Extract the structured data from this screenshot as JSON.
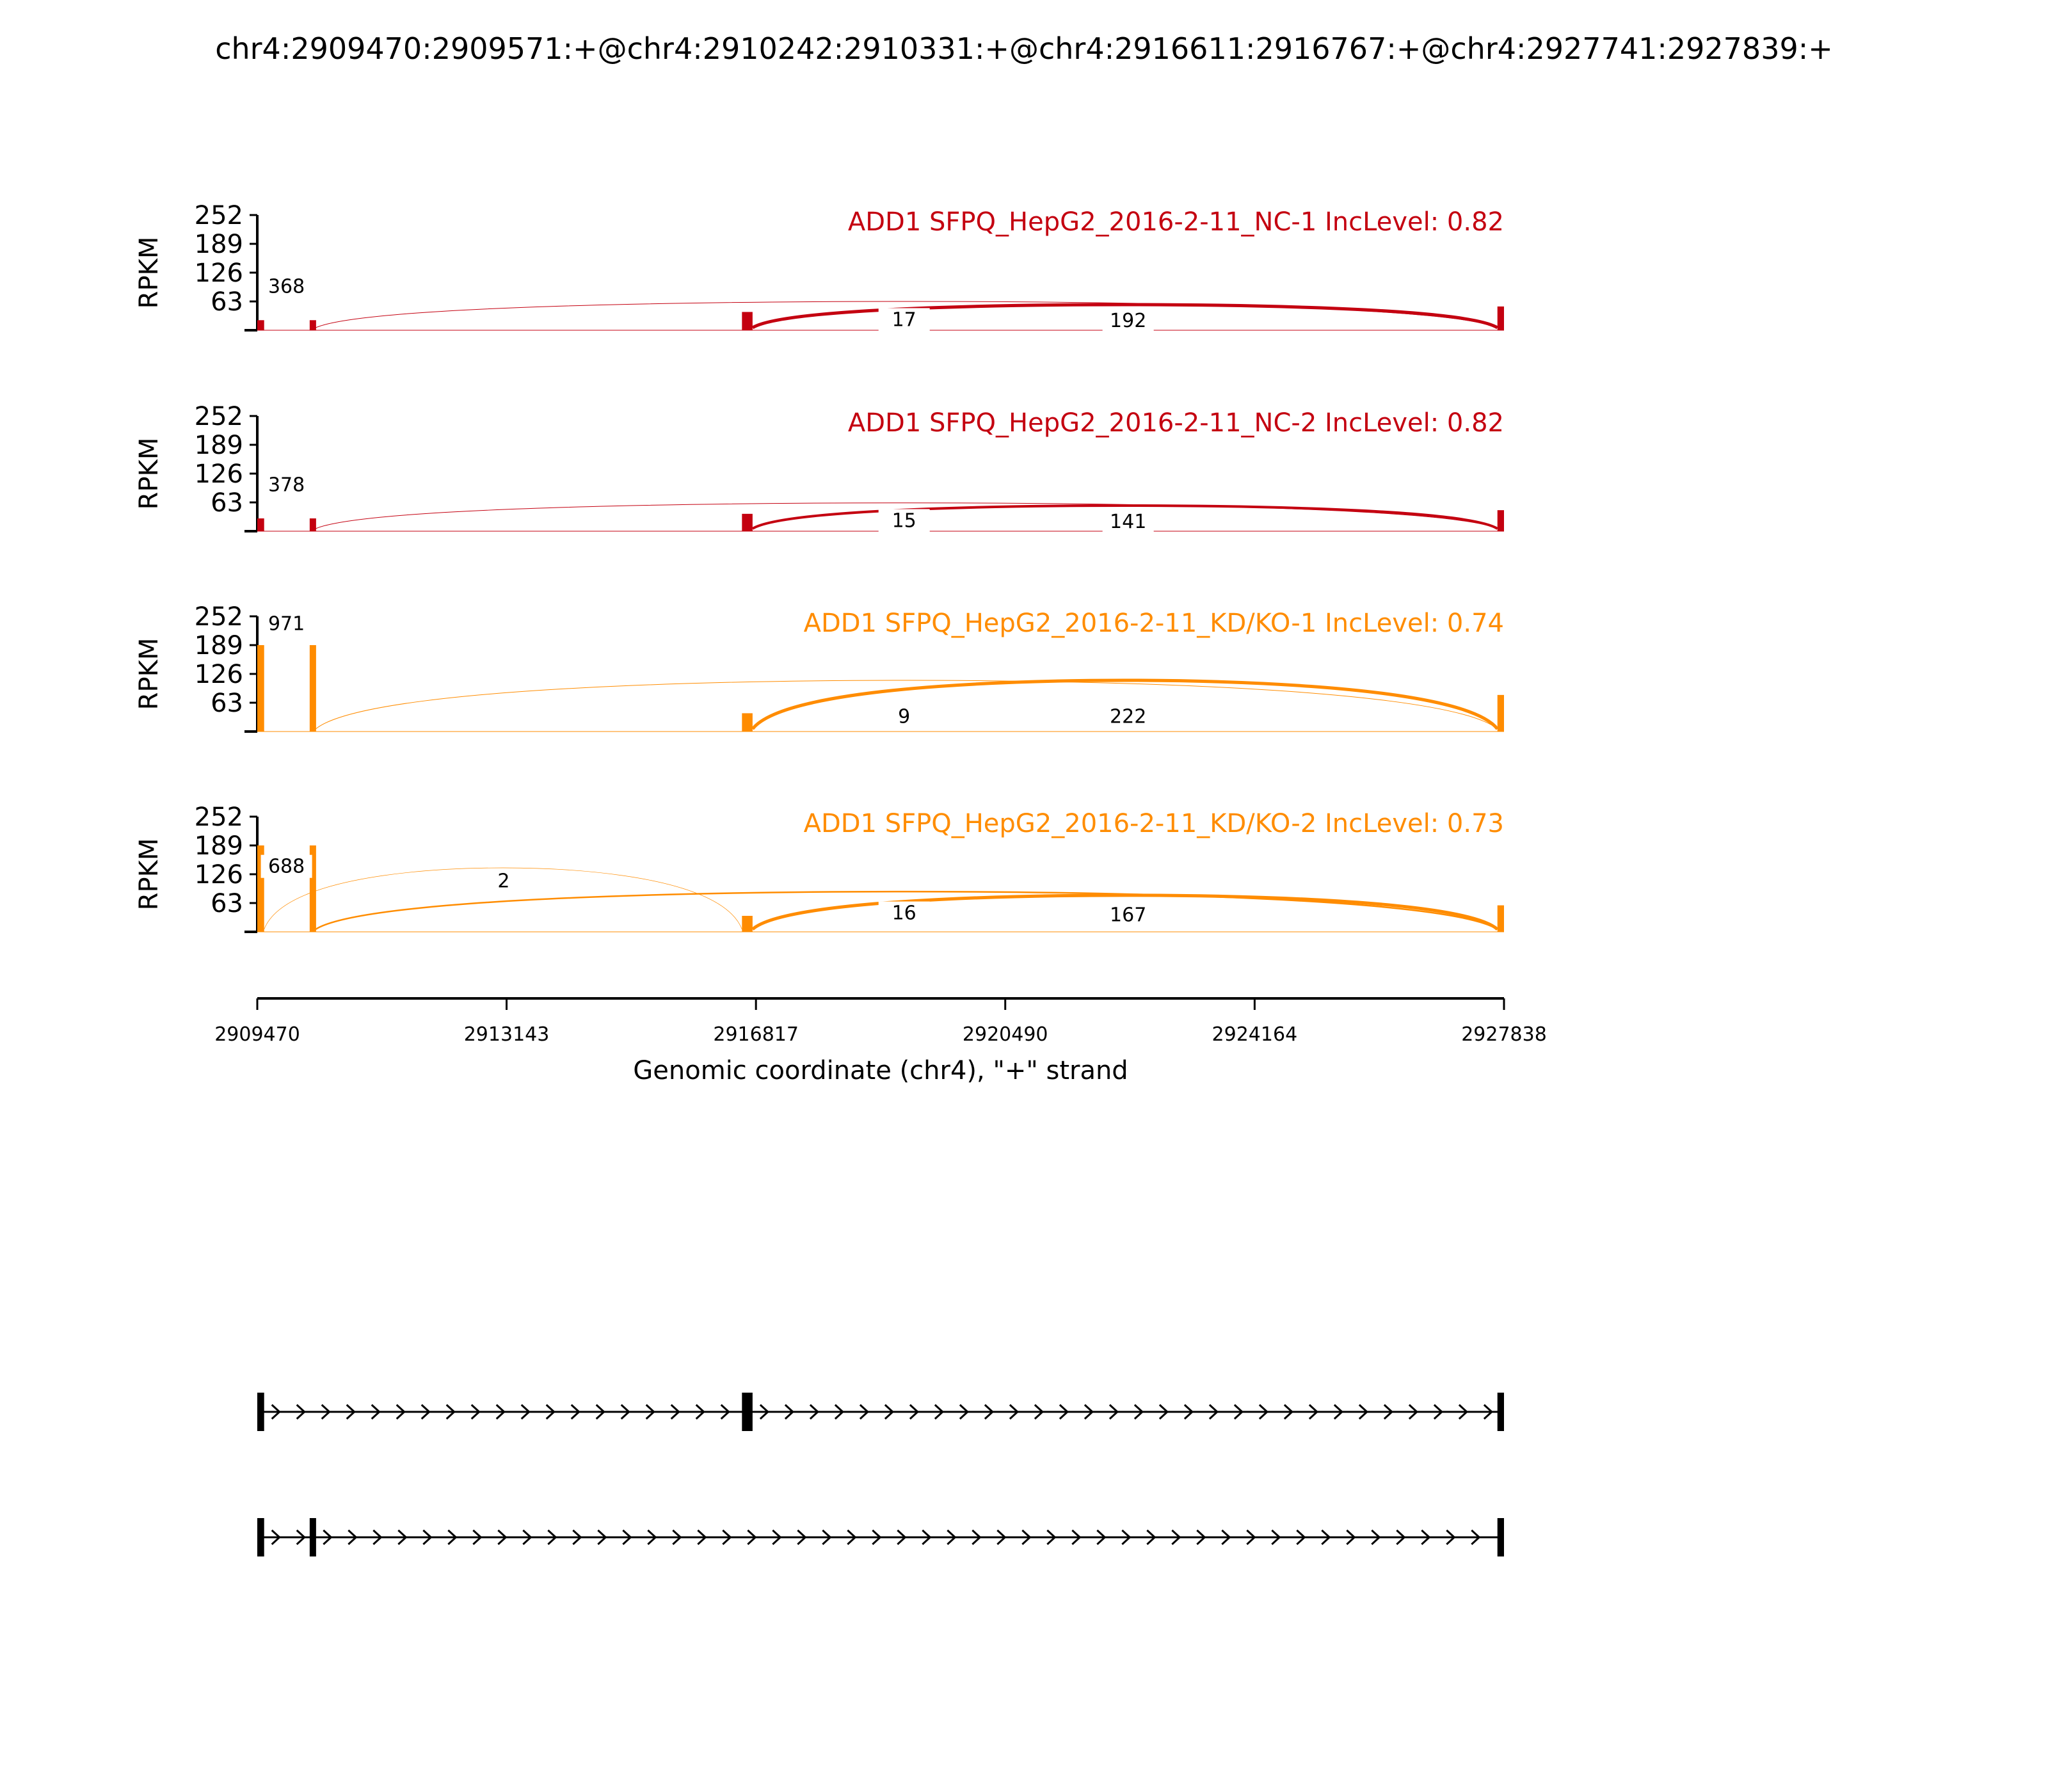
{
  "chart_data": {
    "type": "area",
    "title": "chr4:2909470:2909571:+@chr4:2910242:2910331:+@chr4:2916611:2916767:+@chr4:2927741:2927839:+",
    "xlabel": "Genomic coordinate (chr4), \"+\" strand",
    "ylabel": "RPKM",
    "xlim": [
      2909470,
      2927838
    ],
    "ylim": [
      0,
      252
    ],
    "x_ticks": [
      2909470,
      2913143,
      2916817,
      2920490,
      2924164,
      2927838
    ],
    "y_ticks": [
      63,
      126,
      189,
      252
    ],
    "colors": {
      "nc": "#c40010",
      "kd": "#ff8c00"
    },
    "series": [
      {
        "name": "ADD1 SFPQ_HepG2_2016-2-11_NC-1 IncLevel: 0.82",
        "color": "#c40010",
        "junction_labels": [
          "368",
          "17",
          "192"
        ],
        "coverage": [
          {
            "x0": 2909470,
            "x1": 2909571,
            "y": 22
          },
          {
            "x0": 2910242,
            "x1": 2910331,
            "y": 22
          },
          {
            "x0": 2916611,
            "x1": 2916767,
            "y": 40
          },
          {
            "x0": 2927741,
            "x1": 2927838,
            "y": 52
          }
        ],
        "junctions": [
          {
            "from": 2910331,
            "to": 2927741,
            "height": 63,
            "width": 1
          },
          {
            "from": 2916767,
            "to": 2927741,
            "height": 56,
            "width": 5
          }
        ]
      },
      {
        "name": "ADD1 SFPQ_HepG2_2016-2-11_NC-2 IncLevel: 0.82",
        "color": "#c40010",
        "junction_labels": [
          "378",
          "15",
          "141"
        ],
        "coverage": [
          {
            "x0": 2909470,
            "x1": 2909571,
            "y": 28
          },
          {
            "x0": 2910242,
            "x1": 2910331,
            "y": 28
          },
          {
            "x0": 2916611,
            "x1": 2916767,
            "y": 38
          },
          {
            "x0": 2927741,
            "x1": 2927838,
            "y": 46
          }
        ],
        "junctions": [
          {
            "from": 2910331,
            "to": 2927741,
            "height": 62,
            "width": 1
          },
          {
            "from": 2916767,
            "to": 2927741,
            "height": 56,
            "width": 4
          }
        ]
      },
      {
        "name": "ADD1 SFPQ_HepG2_2016-2-11_KD/KO-1 IncLevel: 0.74",
        "color": "#ff8c00",
        "junction_labels": [
          "971",
          "9",
          "222"
        ],
        "coverage": [
          {
            "x0": 2909470,
            "x1": 2909571,
            "y": 189
          },
          {
            "x0": 2910242,
            "x1": 2910331,
            "y": 189
          },
          {
            "x0": 2916611,
            "x1": 2916767,
            "y": 40
          },
          {
            "x0": 2927741,
            "x1": 2927838,
            "y": 80
          }
        ],
        "junctions": [
          {
            "from": 2910331,
            "to": 2927741,
            "height": 112,
            "width": 1
          },
          {
            "from": 2916767,
            "to": 2927741,
            "height": 112,
            "width": 5
          }
        ]
      },
      {
        "name": "ADD1 SFPQ_HepG2_2016-2-11_KD/KO-2 IncLevel: 0.73",
        "color": "#ff8c00",
        "junction_labels": [
          "688",
          "2",
          "16",
          "167"
        ],
        "coverage": [
          {
            "x0": 2909470,
            "x1": 2909571,
            "y": 189
          },
          {
            "x0": 2910242,
            "x1": 2910331,
            "y": 189
          },
          {
            "x0": 2916611,
            "x1": 2916767,
            "y": 35
          },
          {
            "x0": 2927741,
            "x1": 2927838,
            "y": 58
          }
        ],
        "junctions": [
          {
            "from": 2909571,
            "to": 2916611,
            "height": 140,
            "width": 0.7
          },
          {
            "from": 2910331,
            "to": 2927741,
            "height": 88,
            "width": 2.5
          },
          {
            "from": 2916767,
            "to": 2927741,
            "height": 80,
            "width": 5
          }
        ]
      }
    ],
    "isoforms": [
      {
        "exons": [
          [
            2909470,
            2909571
          ],
          [
            2916611,
            2916767
          ],
          [
            2927741,
            2927838
          ]
        ]
      },
      {
        "exons": [
          [
            2909470,
            2909571
          ],
          [
            2910242,
            2910331
          ],
          [
            2927741,
            2927838
          ]
        ]
      }
    ]
  }
}
